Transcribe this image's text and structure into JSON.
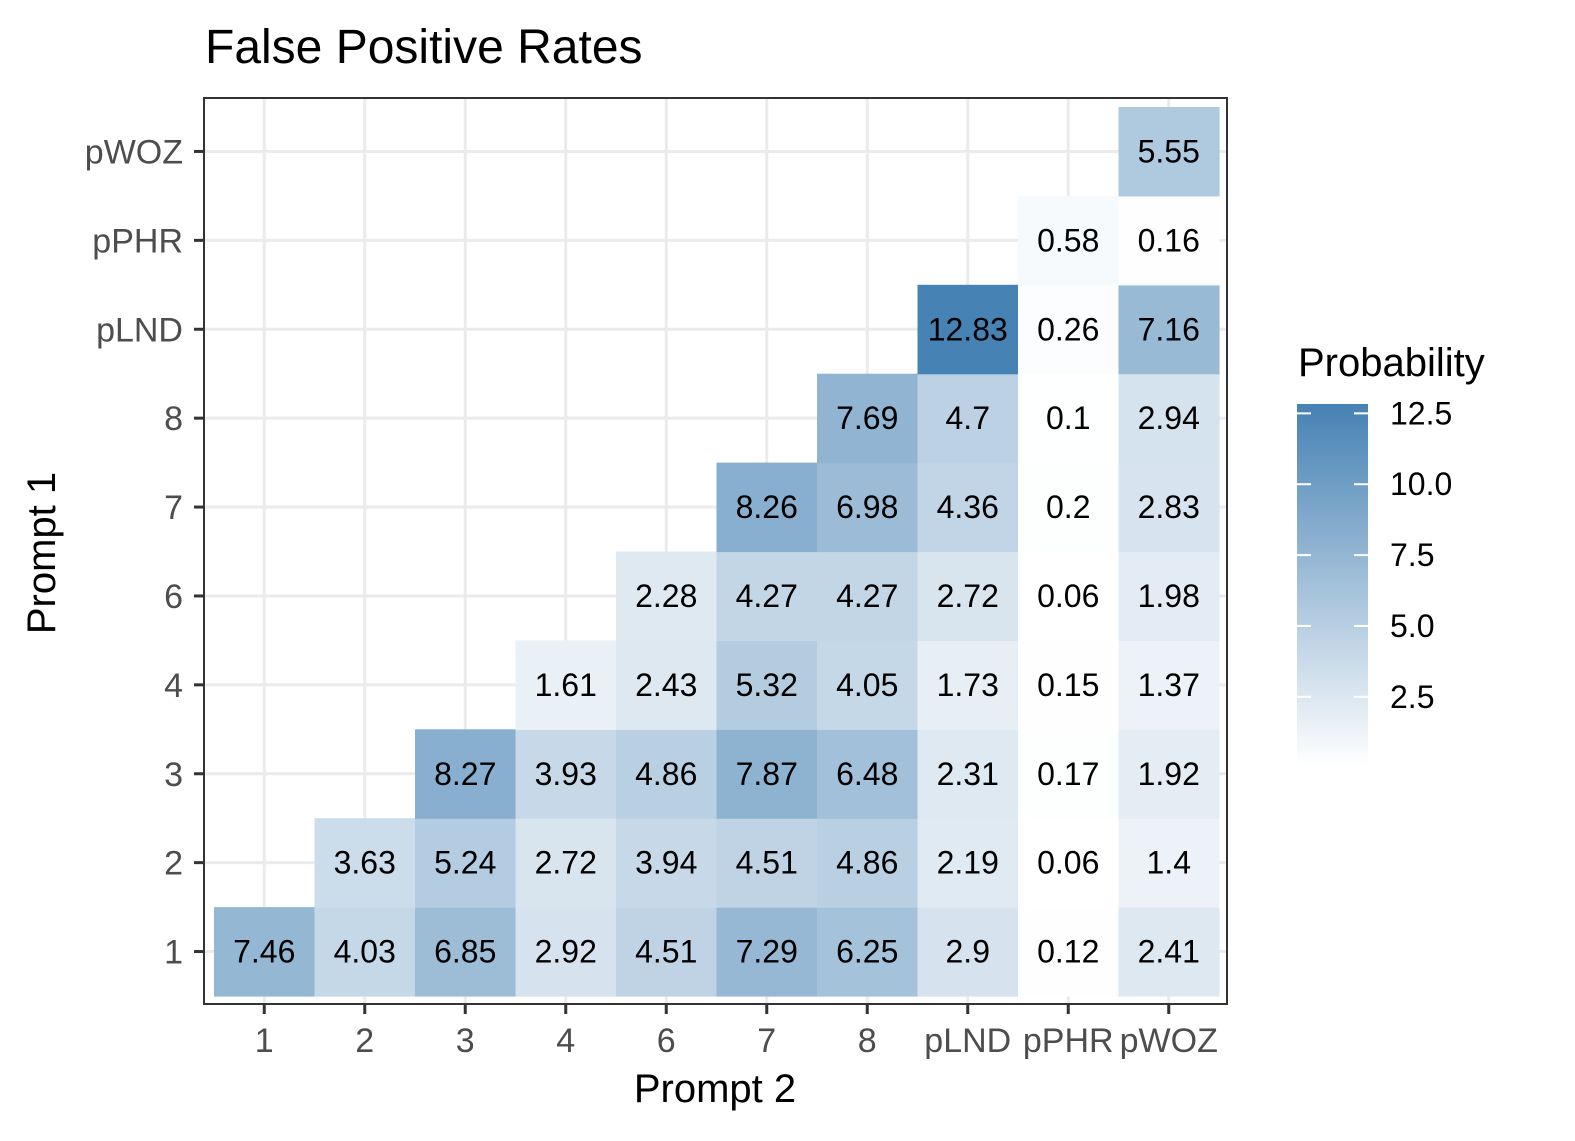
{
  "chart_data": {
    "type": "heatmap",
    "title": "False Positive Rates",
    "xlabel": "Prompt 2",
    "ylabel": "Prompt 1",
    "x_categories": [
      "1",
      "2",
      "3",
      "4",
      "6",
      "7",
      "8",
      "pLND",
      "pPHR",
      "pWOZ"
    ],
    "y_categories": [
      "1",
      "2",
      "3",
      "4",
      "6",
      "7",
      "8",
      "pLND",
      "pPHR",
      "pWOZ"
    ],
    "cells": [
      {
        "x": "1",
        "y": "1",
        "value": 7.46
      },
      {
        "x": "2",
        "y": "1",
        "value": 4.03
      },
      {
        "x": "3",
        "y": "1",
        "value": 6.85
      },
      {
        "x": "4",
        "y": "1",
        "value": 2.92
      },
      {
        "x": "6",
        "y": "1",
        "value": 4.51
      },
      {
        "x": "7",
        "y": "1",
        "value": 7.29
      },
      {
        "x": "8",
        "y": "1",
        "value": 6.25
      },
      {
        "x": "pLND",
        "y": "1",
        "value": 2.9
      },
      {
        "x": "pPHR",
        "y": "1",
        "value": 0.12
      },
      {
        "x": "pWOZ",
        "y": "1",
        "value": 2.41
      },
      {
        "x": "2",
        "y": "2",
        "value": 3.63
      },
      {
        "x": "3",
        "y": "2",
        "value": 5.24
      },
      {
        "x": "4",
        "y": "2",
        "value": 2.72
      },
      {
        "x": "6",
        "y": "2",
        "value": 3.94
      },
      {
        "x": "7",
        "y": "2",
        "value": 4.51
      },
      {
        "x": "8",
        "y": "2",
        "value": 4.86
      },
      {
        "x": "pLND",
        "y": "2",
        "value": 2.19
      },
      {
        "x": "pPHR",
        "y": "2",
        "value": 0.06
      },
      {
        "x": "pWOZ",
        "y": "2",
        "value": 1.4
      },
      {
        "x": "3",
        "y": "3",
        "value": 8.27
      },
      {
        "x": "4",
        "y": "3",
        "value": 3.93
      },
      {
        "x": "6",
        "y": "3",
        "value": 4.86
      },
      {
        "x": "7",
        "y": "3",
        "value": 7.87
      },
      {
        "x": "8",
        "y": "3",
        "value": 6.48
      },
      {
        "x": "pLND",
        "y": "3",
        "value": 2.31
      },
      {
        "x": "pPHR",
        "y": "3",
        "value": 0.17
      },
      {
        "x": "pWOZ",
        "y": "3",
        "value": 1.92
      },
      {
        "x": "4",
        "y": "4",
        "value": 1.61
      },
      {
        "x": "6",
        "y": "4",
        "value": 2.43
      },
      {
        "x": "7",
        "y": "4",
        "value": 5.32
      },
      {
        "x": "8",
        "y": "4",
        "value": 4.05
      },
      {
        "x": "pLND",
        "y": "4",
        "value": 1.73
      },
      {
        "x": "pPHR",
        "y": "4",
        "value": 0.15
      },
      {
        "x": "pWOZ",
        "y": "4",
        "value": 1.37
      },
      {
        "x": "6",
        "y": "6",
        "value": 2.28
      },
      {
        "x": "7",
        "y": "6",
        "value": 4.27
      },
      {
        "x": "8",
        "y": "6",
        "value": 4.27
      },
      {
        "x": "pLND",
        "y": "6",
        "value": 2.72
      },
      {
        "x": "pPHR",
        "y": "6",
        "value": 0.06
      },
      {
        "x": "pWOZ",
        "y": "6",
        "value": 1.98
      },
      {
        "x": "7",
        "y": "7",
        "value": 8.26
      },
      {
        "x": "8",
        "y": "7",
        "value": 6.98
      },
      {
        "x": "pLND",
        "y": "7",
        "value": 4.36
      },
      {
        "x": "pPHR",
        "y": "7",
        "value": 0.2
      },
      {
        "x": "pWOZ",
        "y": "7",
        "value": 2.83
      },
      {
        "x": "8",
        "y": "8",
        "value": 7.69
      },
      {
        "x": "pLND",
        "y": "8",
        "value": 4.7
      },
      {
        "x": "pPHR",
        "y": "8",
        "value": 0.1
      },
      {
        "x": "pWOZ",
        "y": "8",
        "value": 2.94
      },
      {
        "x": "pLND",
        "y": "pLND",
        "value": 12.83
      },
      {
        "x": "pPHR",
        "y": "pLND",
        "value": 0.26
      },
      {
        "x": "pWOZ",
        "y": "pLND",
        "value": 7.16
      },
      {
        "x": "pPHR",
        "y": "pPHR",
        "value": 0.58
      },
      {
        "x": "pWOZ",
        "y": "pPHR",
        "value": 0.16
      },
      {
        "x": "pWOZ",
        "y": "pWOZ",
        "value": 5.55
      }
    ],
    "value_range": [
      0.06,
      12.83
    ],
    "legend": {
      "title": "Probability",
      "ticks": [
        2.5,
        5.0,
        7.5,
        10.0,
        12.5
      ],
      "tick_labels": [
        "2.5",
        "5.0",
        "7.5",
        "10.0",
        "12.5"
      ],
      "placement": "right"
    },
    "color_low": "#ffffff",
    "color_high": "#4682b4",
    "grid": true
  }
}
